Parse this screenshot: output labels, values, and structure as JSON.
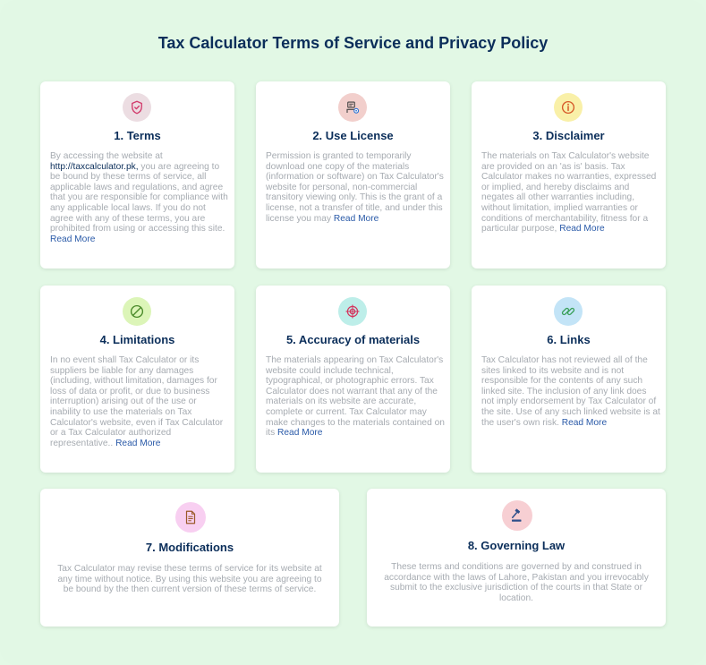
{
  "page_title": "Tax Calculator Terms of Service and Privacy Policy",
  "read_more": "Read More",
  "colors": {
    "background": "#e2f8e5",
    "heading": "#0b2e5a",
    "body_text": "#a6abb1",
    "link": "#2a5aa8"
  },
  "cards": [
    {
      "title": "1. Terms",
      "icon": "shield-icon",
      "text_before": "By accessing the website at ",
      "url": "http://taxcalculator.pk,",
      "text": " you are agreeing to be bound by these terms of service, all applicable laws and regulations, and agree that you are responsible for compliance with any applicable local laws. If you do not agree with any of these terms, you are prohibited from using or accessing this site."
    },
    {
      "title": "2. Use License",
      "icon": "license-icon",
      "text": "Permission is granted to temporarily download one copy of the materials (information or software) on Tax Calculator's website for personal, non-commercial transitory viewing only. This is the grant of a license, not a transfer of title, and under this license you may"
    },
    {
      "title": "3. Disclaimer",
      "icon": "info-icon",
      "text": "The materials on Tax Calculator's website are provided on an 'as is' basis. Tax Calculator makes no warranties, expressed or implied, and hereby disclaims and negates all other warranties including, without limitation, implied warranties or conditions of merchantability, fitness for a particular purpose,"
    },
    {
      "title": "4. Limitations",
      "icon": "prohibited-icon",
      "text": "In no event shall Tax Calculator or its suppliers be liable for any damages (including, without limitation, damages for loss of data or profit, or due to business interruption) arising out of the use or inability to use the materials on Tax Calculator's website, even if Tax Calculator or a Tax Calculator authorized representative.."
    },
    {
      "title": "5. Accuracy of materials",
      "icon": "target-icon",
      "text": "The materials appearing on Tax Calculator's website could include technical, typographical, or photographic errors. Tax Calculator does not warrant that any of the materials on its website are accurate, complete or current. Tax Calculator may make changes to the materials contained on its"
    },
    {
      "title": "6. Links",
      "icon": "link-icon",
      "text": "Tax Calculator has not reviewed all of the sites linked to its website and is not responsible for the contents of any such linked site. The inclusion of any link does not imply endorsement by Tax Calculator of the site. Use of any such linked website is at the user's own risk."
    },
    {
      "title": "7. Modifications",
      "icon": "document-icon",
      "text": "Tax Calculator may revise these terms of service for its website at any time without notice. By using this website you are agreeing to be bound by the then current version of these terms of service."
    },
    {
      "title": "8. Governing Law",
      "icon": "gavel-icon",
      "text": "These terms and conditions are governed by and construed in accordance with the laws of Lahore, Pakistan and you irrevocably submit to the exclusive jurisdiction of the courts in that State or location."
    }
  ]
}
